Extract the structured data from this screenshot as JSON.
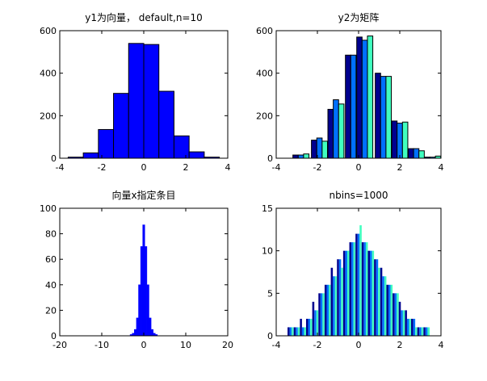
{
  "chart_data": [
    {
      "type": "bar",
      "title": "y1为向量， default,n=10",
      "xlabel": "",
      "ylabel": "",
      "xlim": [
        -4,
        4
      ],
      "ylim": [
        0,
        600
      ],
      "xticks": [
        "-4",
        "-2",
        "0",
        "2",
        "4"
      ],
      "yticks": [
        "0",
        "200",
        "400",
        "600"
      ],
      "bin_edges": [
        -3.6,
        -2.88,
        -2.16,
        -1.44,
        -0.72,
        0.0,
        0.72,
        1.44,
        2.16,
        2.88,
        3.6
      ],
      "series": [
        {
          "values": [
            5,
            25,
            135,
            305,
            540,
            535,
            315,
            105,
            30,
            5
          ]
        }
      ],
      "colors": [
        "#0000ff"
      ],
      "grid": false,
      "legend": "none"
    },
    {
      "type": "bar",
      "title": "y2为矩阵",
      "xlabel": "",
      "ylabel": "",
      "xlim": [
        -4,
        4
      ],
      "ylim": [
        0,
        600
      ],
      "xticks": [
        "-4",
        "-2",
        "0",
        "2",
        "4"
      ],
      "yticks": [
        "0",
        "200",
        "400",
        "600"
      ],
      "categories": [
        -2.8,
        -1.9,
        -1.1,
        -0.25,
        0.3,
        1.2,
        2.0,
        2.8,
        3.6
      ],
      "series": [
        {
          "values": [
            15,
            85,
            230,
            485,
            570,
            400,
            175,
            45,
            5
          ]
        },
        {
          "values": [
            15,
            95,
            275,
            485,
            555,
            385,
            165,
            45,
            5
          ]
        },
        {
          "values": [
            20,
            80,
            255,
            480,
            575,
            385,
            170,
            35,
            10
          ]
        }
      ],
      "colors": [
        "#00008f",
        "#0070ff",
        "#40ffbf"
      ],
      "grid": false,
      "legend": "none"
    },
    {
      "type": "bar",
      "title": "向量x指定条目",
      "xlabel": "",
      "ylabel": "",
      "xlim": [
        -20,
        20
      ],
      "ylim": [
        0,
        100
      ],
      "xticks": [
        "-20",
        "-10",
        "0",
        "10",
        "20"
      ],
      "yticks": [
        "0",
        "20",
        "40",
        "60",
        "80",
        "100"
      ],
      "x": [
        -3.0,
        -2.5,
        -2.0,
        -1.5,
        -1.0,
        -0.5,
        0.0,
        0.5,
        1.0,
        1.5,
        2.0,
        2.5,
        3.0
      ],
      "series": [
        {
          "values": [
            1,
            2,
            5,
            14,
            40,
            70,
            87,
            70,
            40,
            14,
            5,
            2,
            1
          ]
        }
      ],
      "colors": [
        "#0000ff"
      ],
      "grid": false,
      "legend": "none"
    },
    {
      "type": "bar",
      "title": "nbins=1000",
      "xlabel": "",
      "ylabel": "",
      "xlim": [
        -4,
        4
      ],
      "ylim": [
        0,
        15
      ],
      "xticks": [
        "-4",
        "-2",
        "0",
        "2",
        "4"
      ],
      "yticks": [
        "0",
        "5",
        "10",
        "15"
      ],
      "x": [
        -3.3,
        -3.0,
        -2.7,
        -2.4,
        -2.1,
        -1.8,
        -1.5,
        -1.2,
        -0.9,
        -0.6,
        -0.3,
        0.0,
        0.3,
        0.6,
        0.9,
        1.2,
        1.5,
        1.8,
        2.1,
        2.4,
        2.7,
        3.0,
        3.3
      ],
      "series": [
        {
          "values": [
            1,
            1,
            2,
            2,
            4,
            5,
            6,
            8,
            9,
            10,
            11,
            12,
            11,
            10,
            9,
            8,
            6,
            5,
            4,
            3,
            2,
            1,
            1
          ]
        },
        {
          "values": [
            1,
            1,
            1,
            2,
            3,
            5,
            6,
            7,
            9,
            10,
            11,
            12,
            11,
            10,
            9,
            7,
            6,
            5,
            3,
            2,
            2,
            1,
            1
          ]
        },
        {
          "values": [
            1,
            1,
            1,
            2,
            3,
            5,
            6,
            7,
            8,
            10,
            11,
            13,
            11,
            10,
            8,
            7,
            6,
            5,
            3,
            2,
            1,
            1,
            1
          ]
        }
      ],
      "colors": [
        "#00008f",
        "#0070ff",
        "#40ffbf"
      ],
      "grid": false,
      "legend": "none"
    }
  ]
}
